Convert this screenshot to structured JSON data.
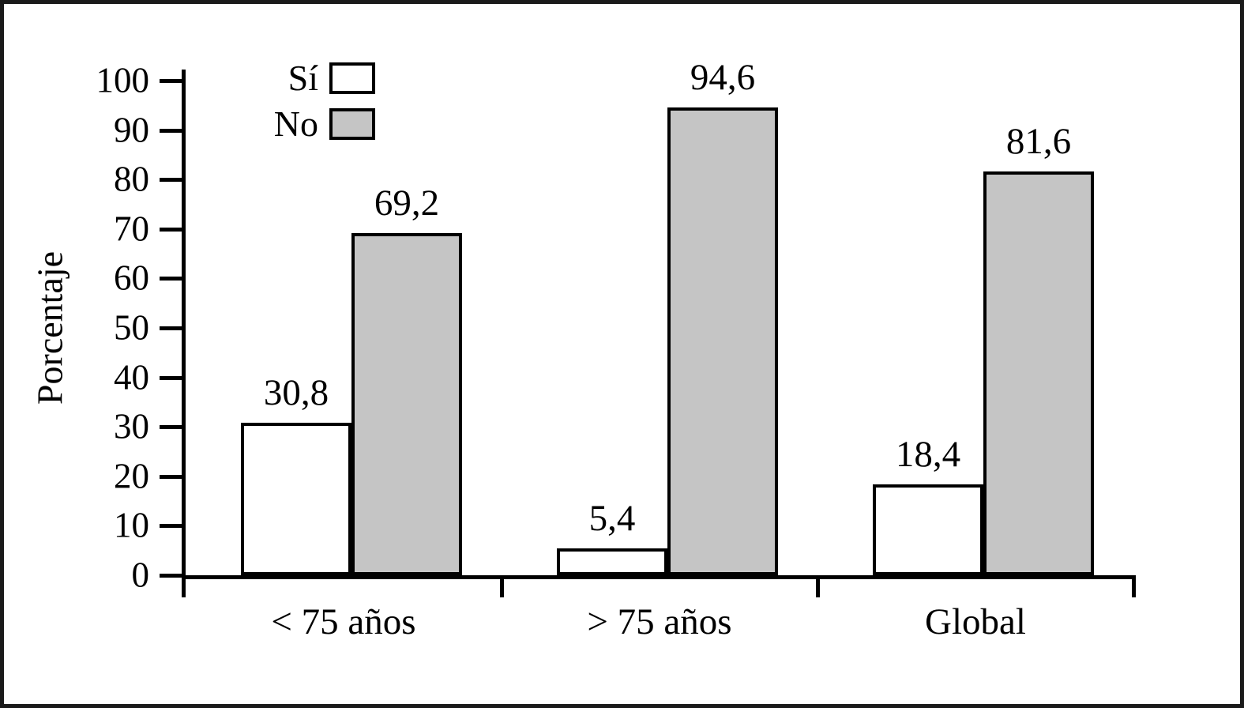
{
  "chart_data": {
    "type": "bar",
    "title": "",
    "categories": [
      "< 75 años",
      "> 75 años",
      "Global"
    ],
    "series": [
      {
        "name": "Sí",
        "color": "#ffffff",
        "values": [
          30.8,
          5.4,
          18.4
        ],
        "labels": [
          "30,8",
          "5,4",
          "18,4"
        ]
      },
      {
        "name": "No",
        "color": "#c5c5c5",
        "values": [
          69.2,
          94.6,
          81.6
        ],
        "labels": [
          "69,2",
          "94,6",
          "81,6"
        ]
      }
    ],
    "xlabel": "",
    "ylabel": "Porcentaje",
    "ylim": [
      0,
      100
    ],
    "yticks": [
      "0",
      "10",
      "20",
      "30",
      "40",
      "50",
      "60",
      "70",
      "80",
      "90",
      "100"
    ],
    "legend_position": "top-left",
    "grid": false
  },
  "colors": {
    "axis": "#000000",
    "frame": "#1a1a1a",
    "background": "#ffffff",
    "bar_si": "#ffffff",
    "bar_no": "#c5c5c5"
  }
}
